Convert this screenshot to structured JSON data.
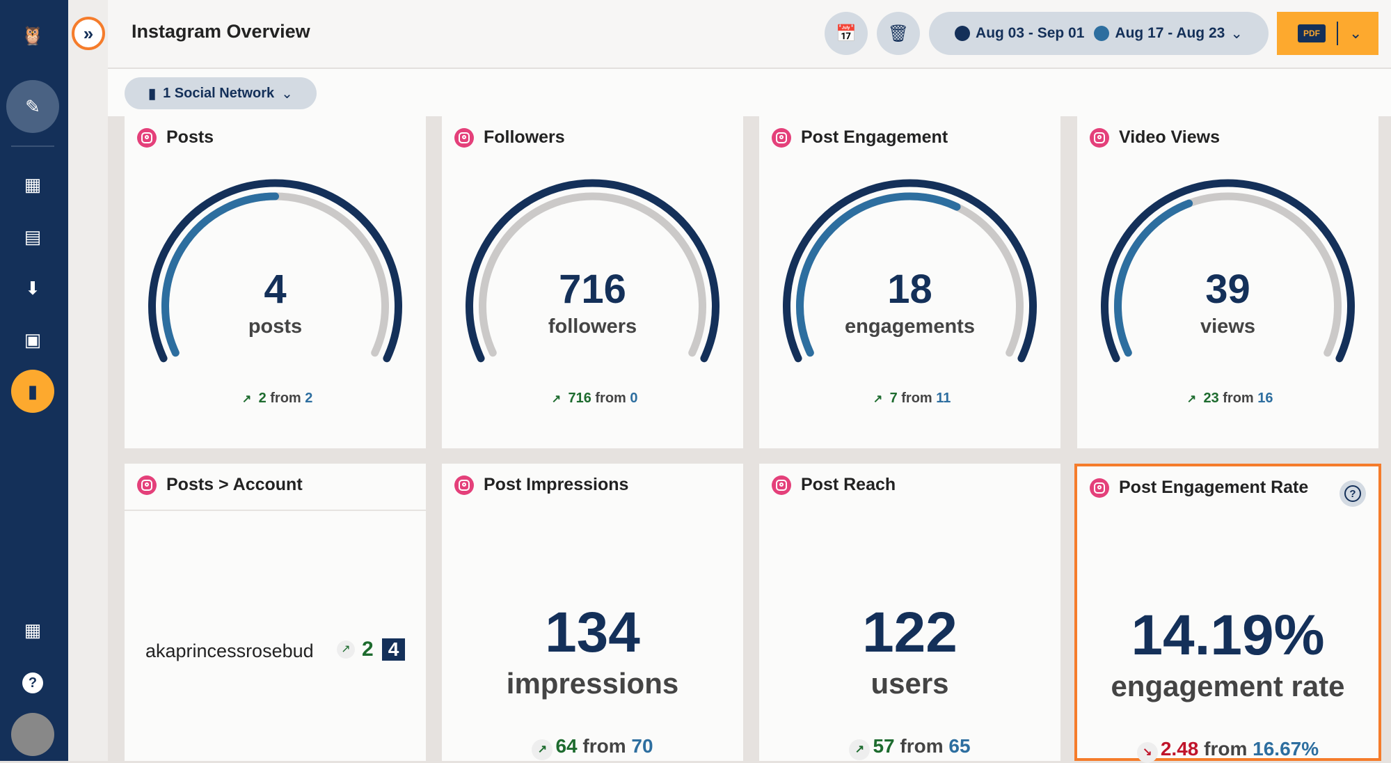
{
  "header": {
    "title": "Instagram Overview",
    "date_range_current": "Aug 03 - Sep 01",
    "date_range_previous": "Aug 17 - Aug 23",
    "export_label": "PDF"
  },
  "filter": {
    "network_label": "1 Social Network"
  },
  "colors": {
    "current": "#143059",
    "previous": "#2d6e9f",
    "accent": "#fda92e",
    "instagram": "#e4407a",
    "highlight": "#f57c2b"
  },
  "gauges": [
    {
      "title": "Posts",
      "value": "4",
      "unit": "posts",
      "change": "2",
      "from_label": "from",
      "previous": "2",
      "direction": "up",
      "fill": 0.5
    },
    {
      "title": "Followers",
      "value": "716",
      "unit": "followers",
      "change": "716",
      "from_label": "from",
      "previous": "0",
      "direction": "up",
      "fill": 0
    },
    {
      "title": "Post Engagement",
      "value": "18",
      "unit": "engagements",
      "change": "7",
      "from_label": "from",
      "previous": "11",
      "direction": "up",
      "fill": 0.61
    },
    {
      "title": "Video Views",
      "value": "39",
      "unit": "views",
      "change": "23",
      "from_label": "from",
      "previous": "16",
      "direction": "up",
      "fill": 0.41
    }
  ],
  "account_card": {
    "title": "Posts > Account",
    "account": "akaprincessrosebud",
    "change": "2",
    "value": "4"
  },
  "metrics": [
    {
      "title": "Post Impressions",
      "value": "134",
      "unit": "impressions",
      "change": "64",
      "from_label": "from",
      "previous": "70",
      "direction": "up"
    },
    {
      "title": "Post Reach",
      "value": "122",
      "unit": "users",
      "change": "57",
      "from_label": "from",
      "previous": "65",
      "direction": "up"
    },
    {
      "title": "Post Engagement Rate",
      "value": "14.19%",
      "unit": "engagement rate",
      "change": "2.48",
      "from_label": "from",
      "previous": "16.67%",
      "direction": "down"
    }
  ]
}
